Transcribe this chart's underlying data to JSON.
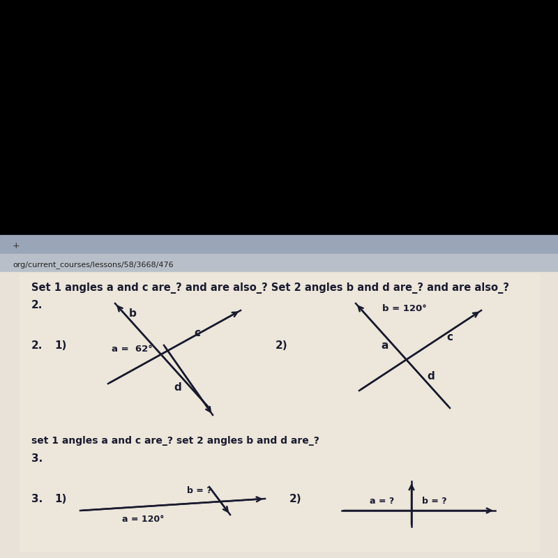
{
  "text_color": "#1a1a2e",
  "line_color": "#1a1a2e",
  "bg_black": "#000000",
  "bg_browser_tab": "#b0b8c8",
  "bg_browser_url": "#c8cdd8",
  "bg_page": "#e8e2d8",
  "bg_content": "#ece6db",
  "title": "Set 1 angles a and c are_? and are also_? Set 2 angles b and d are_? and are also_?",
  "title_fontsize": 10.5,
  "sub_title": "set 1 angles a and c are_? set 2 angles b and d are_?",
  "sub_fontsize": 10,
  "browser_plus": "+",
  "browser_url": "org/current_courses/lessons/58/3668/476",
  "d1_a_label": "a =  62°",
  "d1_b_label": "b",
  "d1_c_label": "c",
  "d1_d_label": "d",
  "d2_b_label": "b = 120°",
  "d2_a_label": "a",
  "d2_c_label": "c",
  "d2_d_label": "d",
  "p3_a_label": "a = 120°",
  "p3_b_label": "b = ?",
  "p3_a2_label": "a = ?",
  "p3_b2_label": "b = ?"
}
